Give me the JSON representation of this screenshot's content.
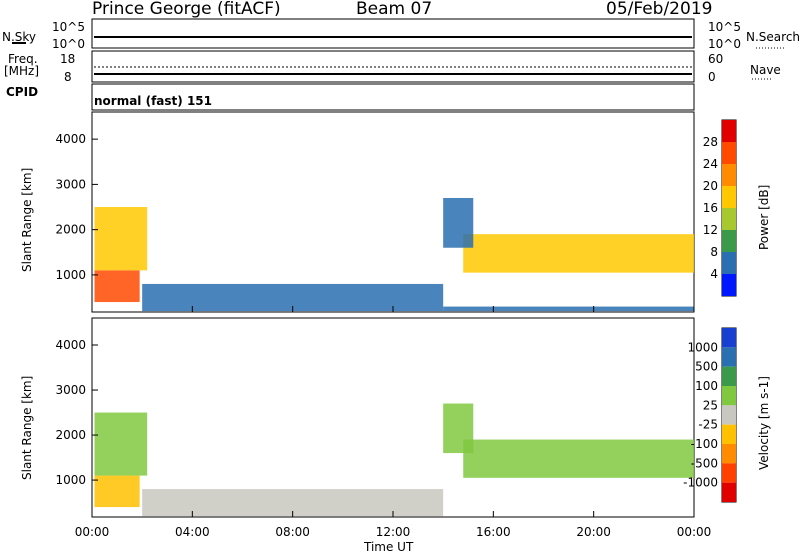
{
  "header": {
    "station": "Prince George (fitACF)",
    "beam": "Beam 07",
    "date": "05/Feb/2019"
  },
  "top_panels": {
    "nsky_label": "N.Sky",
    "nsearch_label": "N.Search",
    "nsky_ticks": [
      "10^5",
      "10^0"
    ],
    "nsearch_ticks": [
      "10^5",
      "10^0"
    ],
    "freq_label": "Freq.",
    "freq_unit": "[MHz]",
    "freq_ticks": [
      "18",
      "8"
    ],
    "nave_label": "Nave",
    "nave_ticks": [
      "60",
      "0"
    ],
    "cpid_label": "CPID",
    "cpid_value": "normal (fast) 151"
  },
  "chart_data": [
    {
      "type": "heatmap",
      "name": "power-panel",
      "ylabel": "Slant Range [km]",
      "xlabel": "",
      "x_ticks": [
        "00:00",
        "04:00",
        "08:00",
        "12:00",
        "16:00",
        "20:00",
        "00:00"
      ],
      "x_range_hours": [
        0,
        24
      ],
      "y_ticks": [
        1000,
        2000,
        3000,
        4000
      ],
      "y_range": [
        180,
        4600
      ],
      "colorbar": {
        "label": "Power [dB]",
        "ticks": [
          "28",
          "24",
          "20",
          "16",
          "12",
          "8",
          "4"
        ],
        "colors": [
          "#e00000",
          "#ff4a00",
          "#ff8c00",
          "#ffc800",
          "#a8c830",
          "#3a9a4a",
          "#2a6fb0",
          "#0018ff"
        ]
      },
      "regions": [
        {
          "t0": 0.1,
          "t1": 1.9,
          "r0": 400,
          "r1": 1100,
          "level": 0.92
        },
        {
          "t0": 0.1,
          "t1": 2.2,
          "r0": 1100,
          "r1": 2500,
          "level": 0.55
        },
        {
          "t0": 2.0,
          "t1": 14.0,
          "r0": 200,
          "r1": 800,
          "level": 0.15
        },
        {
          "t0": 14.8,
          "t1": 24.0,
          "r0": 1050,
          "r1": 1900,
          "level": 0.62
        },
        {
          "t0": 14.0,
          "t1": 15.2,
          "r0": 1600,
          "r1": 2700,
          "level": 0.2
        },
        {
          "t0": 14.0,
          "t1": 24.0,
          "r0": 200,
          "r1": 300,
          "level": 0.2
        }
      ]
    },
    {
      "type": "heatmap",
      "name": "velocity-panel",
      "ylabel": "Slant Range [km]",
      "xlabel": "Time UT",
      "x_ticks": [
        "00:00",
        "04:00",
        "08:00",
        "12:00",
        "16:00",
        "20:00",
        "00:00"
      ],
      "x_range_hours": [
        0,
        24
      ],
      "y_ticks": [
        1000,
        2000,
        3000,
        4000
      ],
      "y_range": [
        180,
        4600
      ],
      "colorbar": {
        "label": "Velocity [m s-1]",
        "ticks": [
          "1000",
          "500",
          "100",
          "25",
          "-25",
          "-100",
          "-500",
          "-1000"
        ],
        "colors": [
          "#1840d0",
          "#2a6fb0",
          "#3a9a4a",
          "#80c840",
          "#c8c8c0",
          "#ffc000",
          "#ff8c00",
          "#ff4000",
          "#e00000"
        ]
      },
      "regions": [
        {
          "t0": 0.1,
          "t1": 1.9,
          "r0": 400,
          "r1": 1100,
          "level": "-100"
        },
        {
          "t0": 0.1,
          "t1": 2.2,
          "r0": 1100,
          "r1": 2500,
          "level": "25"
        },
        {
          "t0": 2.0,
          "t1": 14.0,
          "r0": 200,
          "r1": 800,
          "level": "-25"
        },
        {
          "t0": 14.8,
          "t1": 24.0,
          "r0": 1050,
          "r1": 1900,
          "level": "25"
        },
        {
          "t0": 14.0,
          "t1": 15.2,
          "r0": 1600,
          "r1": 2700,
          "level": "25"
        }
      ]
    }
  ]
}
